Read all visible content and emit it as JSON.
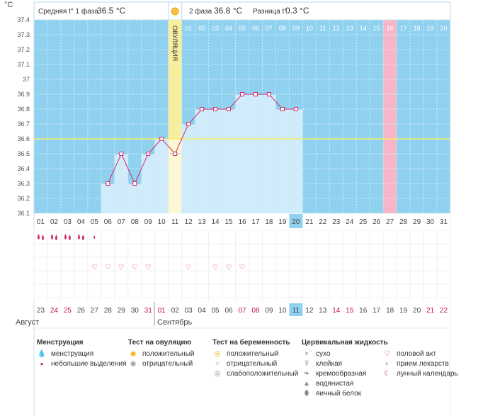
{
  "header": {
    "unit": "°C",
    "phase1_label": "Средняя t° 1 фаза",
    "phase1_value": "36.5 °C",
    "phase2_label": "2 фаза",
    "phase2_value": "36.8 °C",
    "diff_label": "Разница t°",
    "diff_value": "0.3 °C",
    "ovulation_label": "ОВУЛЯЦИЯ"
  },
  "chart_data": {
    "type": "line",
    "ylim": [
      36.1,
      37.4
    ],
    "y_ticks": [
      "36.1",
      "36.2",
      "36.3",
      "36.4",
      "36.5",
      "36.6",
      "36.7",
      "36.8",
      "36.9",
      "37",
      "37.1",
      "37.2",
      "37.3",
      "37.4"
    ],
    "cycle_days": [
      "01",
      "02",
      "03",
      "04",
      "05",
      "06",
      "07",
      "08",
      "09",
      "10",
      "11",
      "12",
      "13",
      "14",
      "15",
      "16",
      "17",
      "18",
      "19",
      "20",
      "21",
      "22",
      "23",
      "24",
      "25",
      "26",
      "27",
      "28",
      "29",
      "30",
      "31"
    ],
    "second_phase_days": [
      "01",
      "02",
      "03",
      "04",
      "05",
      "06",
      "07",
      "08",
      "09",
      "10",
      "11",
      "12",
      "13",
      "14",
      "15",
      "16",
      "17",
      "18",
      "19",
      "20"
    ],
    "temperatures": [
      null,
      null,
      null,
      null,
      null,
      36.3,
      36.5,
      36.3,
      36.5,
      36.6,
      36.5,
      36.7,
      36.8,
      36.8,
      36.8,
      36.9,
      36.9,
      36.9,
      36.8,
      36.8,
      null,
      null,
      null,
      null,
      null,
      null,
      null,
      null,
      null,
      null,
      null
    ],
    "coverline": 36.6,
    "ovulation_day": 11,
    "highlight_day": 27,
    "current_day": 20,
    "calendar_dates": [
      "23",
      "24",
      "25",
      "26",
      "27",
      "28",
      "29",
      "30",
      "31",
      "01",
      "02",
      "03",
      "04",
      "05",
      "06",
      "07",
      "08",
      "09",
      "10",
      "11",
      "12",
      "13",
      "14",
      "15",
      "16",
      "17",
      "18",
      "19",
      "20",
      "21",
      "22"
    ],
    "red_dates_index": [
      1,
      2,
      8,
      9,
      15,
      16,
      22,
      23,
      29,
      30
    ],
    "month1": "Август",
    "month2": "Сентябрь",
    "menstruation_days": [
      1,
      2,
      3,
      4,
      5
    ],
    "menstruation_big": [
      1,
      2,
      3,
      4
    ],
    "intercourse_days": [
      5,
      6,
      7,
      8,
      9,
      12,
      14,
      15,
      16
    ]
  },
  "legend": {
    "menstruation": {
      "title": "Менструация",
      "items": [
        "менструация",
        "небольшие выделения"
      ]
    },
    "ovulation_test": {
      "title": "Тест на овуляцию",
      "items": [
        "положительный",
        "отрицательный"
      ]
    },
    "pregnancy_test": {
      "title": "Тест на беременность",
      "items": [
        "положительный",
        "отрицательный",
        "слабоположительный"
      ]
    },
    "cervical": {
      "title": "Цервикальная жидкость",
      "items": [
        "сухо",
        "клейкая",
        "кремообразная",
        "водянистая",
        "яичный белок"
      ]
    },
    "other": {
      "items": [
        "половой акт",
        "прием лекарств",
        "лунный календарь"
      ]
    }
  },
  "colors": {
    "plot_bg": "#8fd1ef",
    "bar": "#d0ecfb",
    "line": "#d12c6b",
    "ovulation": "#f7ee9e",
    "highlight": "#f7b6c8",
    "current": "#8fd1ef",
    "red_text": "#c4163f"
  }
}
